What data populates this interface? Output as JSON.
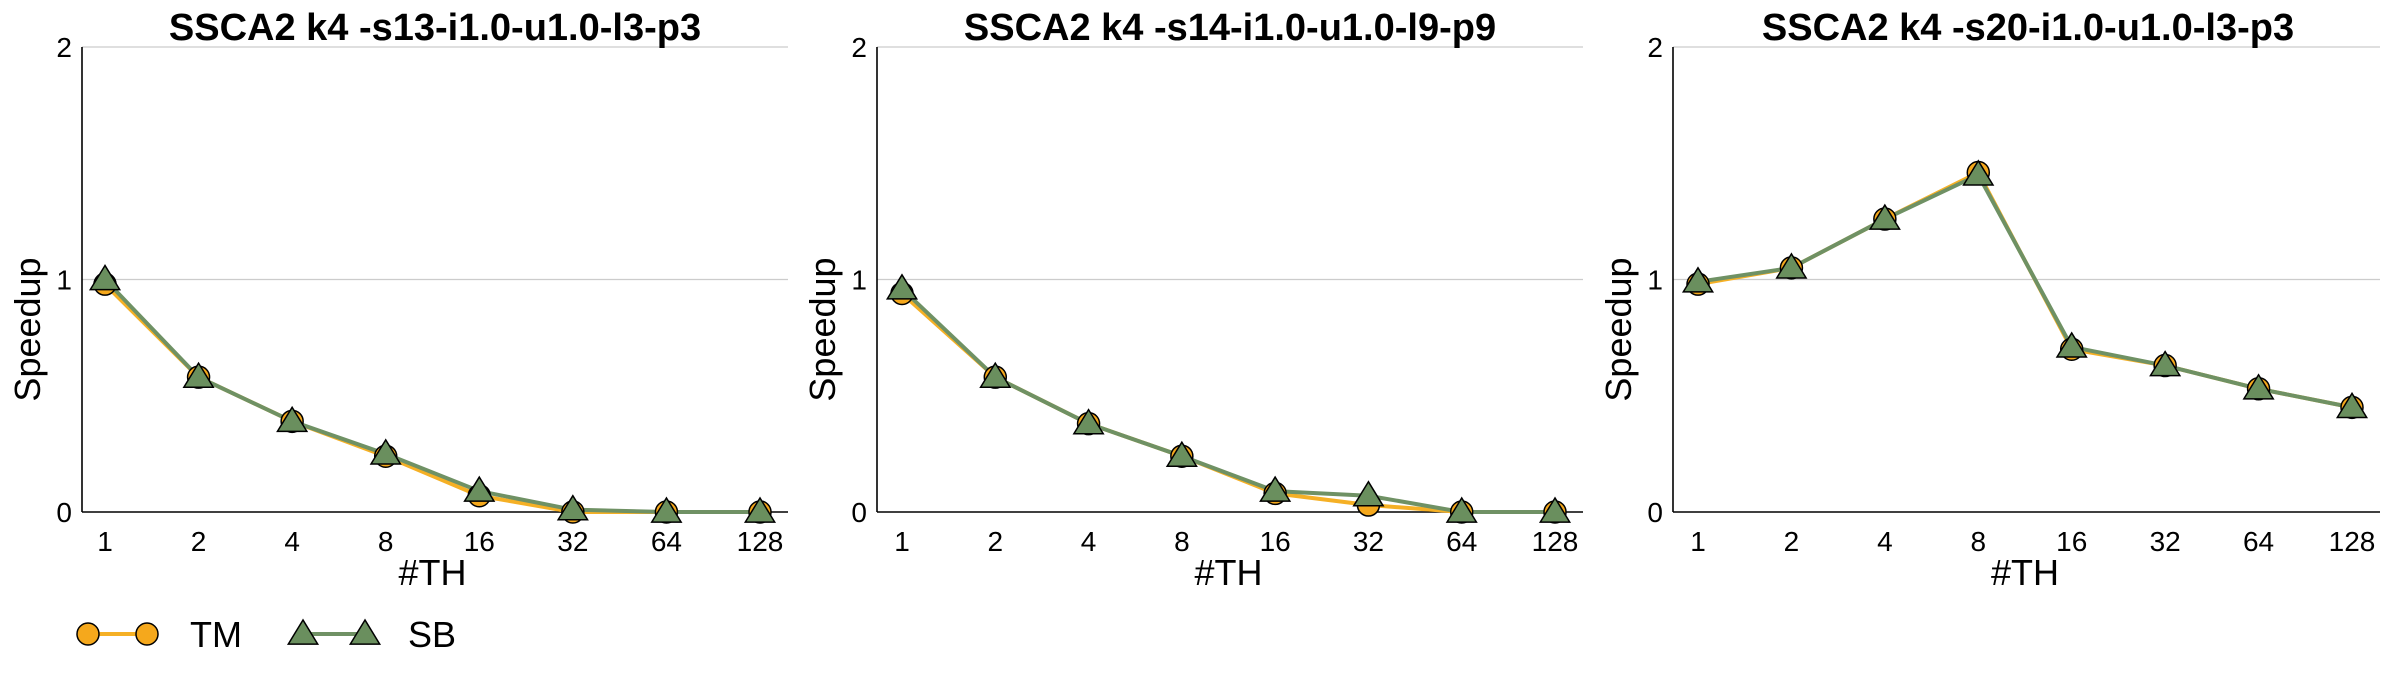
{
  "chart_data": [
    {
      "type": "line",
      "title": "SSCA2 k4 -s13-i1.0-u1.0-l3-p3",
      "xlabel": "#TH",
      "ylabel": "Speedup",
      "categories": [
        "1",
        "2",
        "4",
        "8",
        "16",
        "32",
        "64",
        "128"
      ],
      "ylim": [
        0,
        2
      ],
      "yticks": [
        "0",
        "1",
        "2"
      ],
      "grid": "horizontal",
      "series": [
        {
          "name": "TM",
          "values": [
            0.98,
            0.58,
            0.39,
            0.24,
            0.07,
            0.0,
            0.0,
            0.0
          ]
        },
        {
          "name": "SB",
          "values": [
            1.0,
            0.58,
            0.39,
            0.25,
            0.09,
            0.01,
            0.0,
            0.0
          ]
        }
      ]
    },
    {
      "type": "line",
      "title": "SSCA2 k4 -s14-i1.0-u1.0-l9-p9",
      "xlabel": "#TH",
      "ylabel": "Speedup",
      "categories": [
        "1",
        "2",
        "4",
        "8",
        "16",
        "32",
        "64",
        "128"
      ],
      "ylim": [
        0,
        2
      ],
      "yticks": [
        "0",
        "1",
        "2"
      ],
      "grid": "horizontal",
      "series": [
        {
          "name": "TM",
          "values": [
            0.94,
            0.58,
            0.38,
            0.24,
            0.08,
            0.03,
            0.0,
            0.0
          ]
        },
        {
          "name": "SB",
          "values": [
            0.96,
            0.58,
            0.38,
            0.24,
            0.09,
            0.07,
            0.0,
            0.0
          ]
        }
      ]
    },
    {
      "type": "line",
      "title": "SSCA2 k4 -s20-i1.0-u1.0-l3-p3",
      "xlabel": "#TH",
      "ylabel": "Speedup",
      "categories": [
        "1",
        "2",
        "4",
        "8",
        "16",
        "32",
        "64",
        "128"
      ],
      "ylim": [
        0,
        2
      ],
      "yticks": [
        "0",
        "1",
        "2"
      ],
      "grid": "horizontal",
      "series": [
        {
          "name": "TM",
          "values": [
            0.98,
            1.05,
            1.26,
            1.46,
            0.7,
            0.63,
            0.53,
            0.45
          ]
        },
        {
          "name": "SB",
          "values": [
            0.99,
            1.05,
            1.26,
            1.45,
            0.71,
            0.63,
            0.53,
            0.45
          ]
        }
      ]
    }
  ],
  "legend": {
    "placement": "bottom-left",
    "items": [
      {
        "label": "TM",
        "marker": "circle",
        "line_color": "#f5b025",
        "marker_fill": "#f5a81c"
      },
      {
        "label": "SB",
        "marker": "triangle",
        "line_color": "#6f9164",
        "marker_fill": "#6a8f5e"
      }
    ]
  },
  "colors": {
    "tm_line": "#f5b025",
    "tm_marker": "#f5a81c",
    "sb_line": "#6f9164",
    "sb_marker": "#6a8f5e",
    "grid": "#cccccc"
  }
}
